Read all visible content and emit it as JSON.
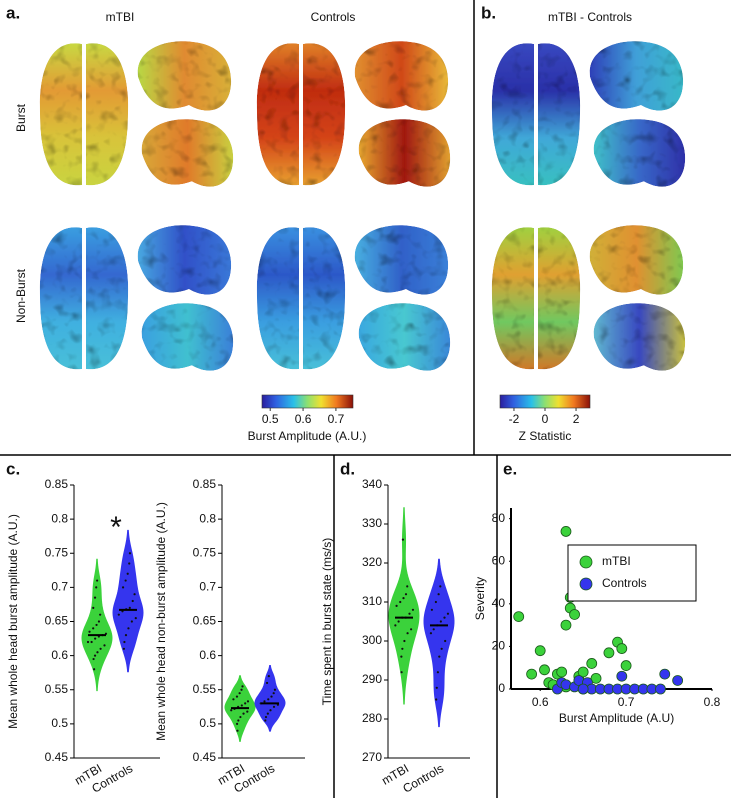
{
  "labels": {
    "a": "a.",
    "b": "b.",
    "c": "c.",
    "d": "d.",
    "e": "e."
  },
  "panel_a": {
    "columns": [
      "mTBI",
      "Controls"
    ],
    "rows": [
      "Burst",
      "Non-Burst"
    ],
    "colorbar": {
      "label": "Burst Amplitude (A.U.)",
      "lim": [
        0.475,
        0.752
      ],
      "ticks": [
        0.5,
        0.6,
        0.7
      ]
    }
  },
  "panel_b": {
    "title": "mTBI - Controls",
    "colorbar": {
      "label": "Z Statistic",
      "lim": [
        -2.9,
        2.9
      ],
      "ticks": [
        -2,
        0,
        2
      ]
    }
  },
  "chart_data": [
    {
      "type": "violin",
      "ylabel": "Mean whole head burst amplitude (A.U.)",
      "annotation": "*",
      "ylim": [
        0.45,
        0.85
      ],
      "yticks": [
        0.45,
        0.5,
        0.55,
        0.6,
        0.65,
        0.7,
        0.75,
        0.8,
        0.85
      ],
      "categories": [
        "mTBI",
        "Controls"
      ],
      "colors": [
        "#3bd23b",
        "#3535ee"
      ],
      "values": [
        [
          0.58,
          0.595,
          0.6,
          0.605,
          0.61,
          0.615,
          0.62,
          0.62,
          0.625,
          0.628,
          0.63,
          0.632,
          0.635,
          0.64,
          0.645,
          0.65,
          0.66,
          0.67,
          0.685,
          0.7,
          0.71
        ],
        [
          0.61,
          0.62,
          0.63,
          0.64,
          0.65,
          0.655,
          0.66,
          0.665,
          0.668,
          0.67,
          0.68,
          0.69,
          0.7,
          0.71,
          0.72,
          0.735,
          0.75
        ]
      ],
      "medians": [
        0.63,
        0.667
      ]
    },
    {
      "type": "violin",
      "ylabel": "Mean whole head non-burst amplitude (A.U.)",
      "ylim": [
        0.45,
        0.85
      ],
      "yticks": [
        0.45,
        0.5,
        0.55,
        0.6,
        0.65,
        0.7,
        0.75,
        0.8,
        0.85
      ],
      "categories": [
        "mTBI",
        "Controls"
      ],
      "colors": [
        "#3bd23b",
        "#3535ee"
      ],
      "values": [
        [
          0.49,
          0.5,
          0.505,
          0.51,
          0.515,
          0.518,
          0.52,
          0.522,
          0.525,
          0.527,
          0.53,
          0.533,
          0.536,
          0.54,
          0.545,
          0.55,
          0.555
        ],
        [
          0.505,
          0.51,
          0.515,
          0.52,
          0.525,
          0.528,
          0.53,
          0.533,
          0.536,
          0.54,
          0.545,
          0.55,
          0.56,
          0.57
        ]
      ],
      "medians": [
        0.523,
        0.53
      ]
    },
    {
      "type": "violin",
      "ylabel": "Time spent in burst state (ms/s)",
      "ylim": [
        270,
        340
      ],
      "yticks": [
        270,
        280,
        290,
        300,
        310,
        320,
        330,
        340
      ],
      "categories": [
        "mTBI",
        "Controls"
      ],
      "colors": [
        "#3bd23b",
        "#3535ee"
      ],
      "values": [
        [
          292,
          296,
          298,
          300,
          302,
          303,
          304,
          305,
          306,
          306,
          307,
          308,
          309,
          310,
          311,
          312,
          314,
          326
        ],
        [
          285,
          288,
          292,
          296,
          298,
          300,
          302,
          303,
          304,
          305,
          306,
          307,
          308,
          310,
          312,
          314
        ]
      ],
      "medians": [
        306,
        304
      ]
    },
    {
      "type": "scatter",
      "xlabel": "Burst Amplitude (A.U)",
      "ylabel": "Severity",
      "legend": "upper right",
      "xlim": [
        0.566,
        0.8
      ],
      "xticks": [
        0.6,
        0.7,
        0.8
      ],
      "ylim": [
        0,
        85
      ],
      "yticks": [
        0,
        20,
        40,
        60,
        80
      ],
      "series": [
        {
          "name": "mTBI",
          "color": "#3bd23b",
          "x": [
            0.575,
            0.59,
            0.6,
            0.605,
            0.61,
            0.62,
            0.625,
            0.63,
            0.63,
            0.635,
            0.635,
            0.64,
            0.645,
            0.65,
            0.66,
            0.665,
            0.68,
            0.69,
            0.695,
            0.7,
            0.615,
            0.63
          ],
          "y": [
            34,
            7,
            18,
            9,
            3,
            7,
            8,
            74,
            30,
            43,
            38,
            35,
            6,
            8,
            12,
            5,
            17,
            22,
            19,
            11,
            2,
            1
          ]
        },
        {
          "name": "Controls",
          "color": "#3535ee",
          "x": [
            0.62,
            0.625,
            0.63,
            0.64,
            0.645,
            0.65,
            0.655,
            0.66,
            0.67,
            0.68,
            0.69,
            0.695,
            0.7,
            0.71,
            0.72,
            0.73,
            0.74,
            0.745,
            0.76,
            0.65
          ],
          "y": [
            0,
            3,
            2,
            1,
            4,
            0,
            3,
            0,
            0,
            0,
            0,
            6,
            0,
            0,
            0,
            0,
            0,
            7,
            4,
            0
          ]
        }
      ]
    }
  ]
}
